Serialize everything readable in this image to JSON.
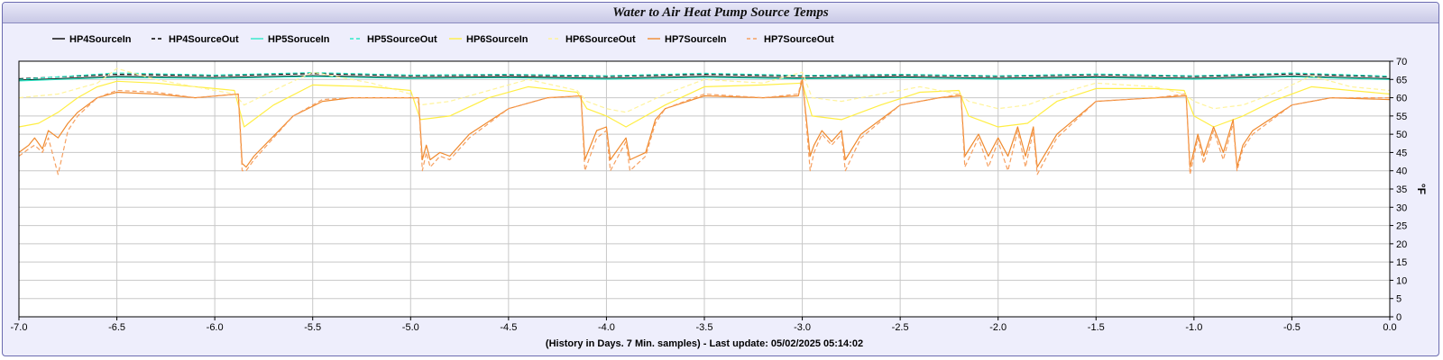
{
  "chart_data": {
    "type": "line",
    "title": "Water to Air Heat Pump Source Temps",
    "xlabel": "(History in Days. 7 Min. samples) - Last update: 05/02/2025 05:14:02",
    "ylabel": "°F",
    "xlim": [
      -7.0,
      0.0
    ],
    "ylim": [
      0,
      70
    ],
    "x_ticks": [
      "-7.0",
      "-6.5",
      "-6.0",
      "-5.5",
      "-5.0",
      "-4.5",
      "-4.0",
      "-3.5",
      "-3.0",
      "-2.5",
      "-2.0",
      "-1.5",
      "-1.0",
      "-0.5",
      "0.0"
    ],
    "y_ticks": [
      "0",
      "5",
      "10",
      "15",
      "20",
      "25",
      "30",
      "35",
      "40",
      "45",
      "50",
      "55",
      "60",
      "65",
      "70"
    ],
    "grid": true,
    "legend_position": "top",
    "series": [
      {
        "name": "HP4SourceIn",
        "color": "#000000",
        "dash": "solid",
        "x": [
          -7.0,
          -6.5,
          -6.0,
          -5.5,
          -5.0,
          -4.5,
          -4.0,
          -3.5,
          -3.0,
          -2.5,
          -2.0,
          -1.5,
          -1.0,
          -0.5,
          0.0
        ],
        "y": [
          64.8,
          65.8,
          65.5,
          66.0,
          65.5,
          65.7,
          65.3,
          65.8,
          65.4,
          65.7,
          65.3,
          65.7,
          65.3,
          65.9,
          65.2
        ]
      },
      {
        "name": "HP4SourceOut",
        "color": "#000000",
        "dash": "dashed",
        "x": [
          -7.0,
          -6.5,
          -6.0,
          -5.5,
          -5.0,
          -4.5,
          -4.0,
          -3.5,
          -3.0,
          -2.5,
          -2.0,
          -1.5,
          -1.0,
          -0.5,
          0.0
        ],
        "y": [
          65.2,
          66.4,
          66.0,
          66.6,
          66.0,
          66.2,
          65.8,
          66.4,
          65.9,
          66.2,
          65.8,
          66.3,
          65.8,
          66.5,
          65.7
        ]
      },
      {
        "name": "HP5SoruceIn",
        "color": "#2ee8c8",
        "dash": "solid",
        "x": [
          -7.0,
          -6.5,
          -6.0,
          -5.5,
          -5.0,
          -4.5,
          -4.0,
          -3.5,
          -3.0,
          -2.5,
          -2.0,
          -1.5,
          -1.0,
          -0.5,
          0.0
        ],
        "y": [
          64.6,
          65.6,
          65.3,
          65.8,
          65.3,
          65.5,
          65.1,
          65.6,
          65.2,
          65.5,
          65.1,
          65.5,
          65.1,
          65.7,
          65.0
        ]
      },
      {
        "name": "HP5SourceOut",
        "color": "#2ee8c8",
        "dash": "dashed",
        "x": [
          -7.0,
          -6.5,
          -6.0,
          -5.5,
          -5.0,
          -4.5,
          -4.0,
          -3.5,
          -3.0,
          -2.5,
          -2.0,
          -1.5,
          -1.0,
          -0.5,
          0.0
        ],
        "y": [
          65.0,
          66.8,
          66.2,
          66.9,
          66.2,
          66.4,
          66.0,
          66.7,
          66.1,
          66.4,
          66.0,
          66.5,
          66.0,
          66.8,
          65.9
        ]
      },
      {
        "name": "HP6SourceIn",
        "color": "#ffee44",
        "dash": "solid",
        "x": [
          -7.0,
          -6.9,
          -6.8,
          -6.7,
          -6.6,
          -6.5,
          -6.3,
          -6.0,
          -5.9,
          -5.85,
          -5.7,
          -5.5,
          -5.2,
          -5.0,
          -4.95,
          -4.8,
          -4.6,
          -4.4,
          -4.15,
          -4.1,
          -4.0,
          -3.9,
          -3.7,
          -3.5,
          -3.2,
          -3.0,
          -2.95,
          -2.8,
          -2.6,
          -2.4,
          -2.2,
          -2.15,
          -2.0,
          -1.85,
          -1.7,
          -1.5,
          -1.2,
          -1.05,
          -1.0,
          -0.9,
          -0.75,
          -0.6,
          -0.4,
          -0.2,
          0.0
        ],
        "y": [
          52,
          53,
          56,
          60,
          63,
          64.5,
          64,
          62.5,
          62,
          52,
          58,
          63.5,
          63,
          62,
          54,
          55,
          60,
          63,
          61.5,
          57,
          55,
          52,
          58,
          63,
          63.5,
          64,
          55,
          54,
          58,
          61.5,
          62,
          55,
          52,
          53,
          59,
          62.5,
          62.5,
          62,
          55,
          52,
          55,
          59,
          63,
          62,
          61
        ]
      },
      {
        "name": "HP6SourceOut",
        "color": "#fff39a",
        "dash": "dashed",
        "x": [
          -7.0,
          -6.8,
          -6.6,
          -6.5,
          -6.3,
          -6.0,
          -5.9,
          -5.85,
          -5.7,
          -5.5,
          -5.2,
          -5.0,
          -4.95,
          -4.8,
          -4.6,
          -4.4,
          -4.15,
          -4.1,
          -4.0,
          -3.9,
          -3.7,
          -3.5,
          -3.2,
          -3.0,
          -2.95,
          -2.8,
          -2.6,
          -2.4,
          -2.2,
          -2.15,
          -2.0,
          -1.85,
          -1.7,
          -1.5,
          -1.2,
          -1.05,
          -1.0,
          -0.9,
          -0.75,
          -0.6,
          -0.4,
          -0.2,
          0.0
        ],
        "y": [
          60,
          61,
          64,
          68,
          65,
          62,
          61,
          58,
          62,
          67,
          64,
          61,
          58,
          59,
          62,
          65,
          62,
          59,
          57,
          56,
          61,
          65,
          64,
          67,
          60,
          59,
          61,
          63,
          61,
          59,
          57,
          58,
          61,
          64,
          63,
          61,
          59,
          57,
          58,
          61,
          66,
          63,
          62
        ]
      },
      {
        "name": "HP7SourceIn",
        "color": "#f08a2e",
        "dash": "solid",
        "x": [
          -7.0,
          -6.95,
          -6.92,
          -6.88,
          -6.85,
          -6.8,
          -6.75,
          -6.7,
          -6.6,
          -6.5,
          -6.3,
          -6.1,
          -5.88,
          -5.86,
          -5.84,
          -5.8,
          -5.6,
          -5.45,
          -5.3,
          -5.1,
          -4.96,
          -4.94,
          -4.92,
          -4.9,
          -4.85,
          -4.8,
          -4.7,
          -4.5,
          -4.3,
          -4.13,
          -4.11,
          -4.05,
          -4.0,
          -3.98,
          -3.9,
          -3.88,
          -3.8,
          -3.75,
          -3.7,
          -3.5,
          -3.2,
          -3.02,
          -3.0,
          -2.96,
          -2.94,
          -2.9,
          -2.85,
          -2.8,
          -2.78,
          -2.7,
          -2.5,
          -2.3,
          -2.19,
          -2.17,
          -2.1,
          -2.05,
          -2.0,
          -1.95,
          -1.9,
          -1.86,
          -1.82,
          -1.8,
          -1.7,
          -1.5,
          -1.2,
          -1.04,
          -1.02,
          -0.98,
          -0.95,
          -0.9,
          -0.85,
          -0.8,
          -0.78,
          -0.75,
          -0.7,
          -0.5,
          -0.3,
          0.0
        ],
        "y": [
          45,
          47,
          49,
          46,
          51,
          49,
          53,
          56,
          60,
          61.5,
          61,
          60,
          61,
          42,
          41,
          44,
          55,
          59,
          60,
          60,
          60,
          43,
          47,
          43,
          45,
          44,
          50,
          57,
          60,
          60.5,
          43,
          51,
          52,
          43,
          49,
          43,
          45,
          54,
          57,
          60.5,
          60,
          60.5,
          65,
          44,
          47,
          51,
          48,
          51,
          43,
          50,
          58,
          60,
          60.5,
          44,
          50,
          44,
          49,
          44,
          52,
          44,
          52,
          41,
          50,
          59,
          60,
          60.5,
          41,
          50,
          44,
          52,
          45,
          54,
          41,
          47,
          51,
          58,
          60,
          59.5
        ]
      },
      {
        "name": "HP7SourceOut",
        "color": "#f6a060",
        "dash": "dashed",
        "x": [
          -7.0,
          -6.95,
          -6.92,
          -6.88,
          -6.85,
          -6.8,
          -6.75,
          -6.7,
          -6.6,
          -6.5,
          -6.3,
          -6.1,
          -5.88,
          -5.86,
          -5.84,
          -5.8,
          -5.6,
          -5.45,
          -5.3,
          -5.1,
          -4.96,
          -4.94,
          -4.92,
          -4.9,
          -4.85,
          -4.8,
          -4.7,
          -4.5,
          -4.3,
          -4.13,
          -4.11,
          -4.05,
          -4.0,
          -3.98,
          -3.9,
          -3.88,
          -3.8,
          -3.75,
          -3.7,
          -3.5,
          -3.2,
          -3.02,
          -3.0,
          -2.96,
          -2.94,
          -2.9,
          -2.85,
          -2.8,
          -2.78,
          -2.7,
          -2.5,
          -2.3,
          -2.19,
          -2.17,
          -2.1,
          -2.05,
          -2.0,
          -1.95,
          -1.9,
          -1.86,
          -1.82,
          -1.8,
          -1.7,
          -1.5,
          -1.2,
          -1.04,
          -1.02,
          -0.98,
          -0.95,
          -0.9,
          -0.85,
          -0.8,
          -0.78,
          -0.75,
          -0.7,
          -0.5,
          -0.3,
          0.0
        ],
        "y": [
          44,
          46,
          47,
          45,
          49,
          39,
          51,
          55,
          60,
          62,
          61.5,
          60,
          61,
          40,
          40,
          43,
          55,
          59.5,
          60,
          60,
          60,
          40,
          45,
          41,
          44,
          43,
          49,
          57,
          60,
          60.5,
          40,
          49,
          51,
          40,
          48,
          40,
          44,
          53,
          57,
          61,
          60,
          61,
          66,
          40,
          45,
          50,
          47,
          50,
          40,
          49,
          58,
          60,
          61,
          41,
          49,
          41,
          48,
          40,
          51,
          41,
          51,
          39,
          49,
          59,
          60,
          61,
          39,
          49,
          42,
          51,
          43,
          53,
          40,
          46,
          50,
          58,
          60,
          60
        ]
      }
    ]
  }
}
